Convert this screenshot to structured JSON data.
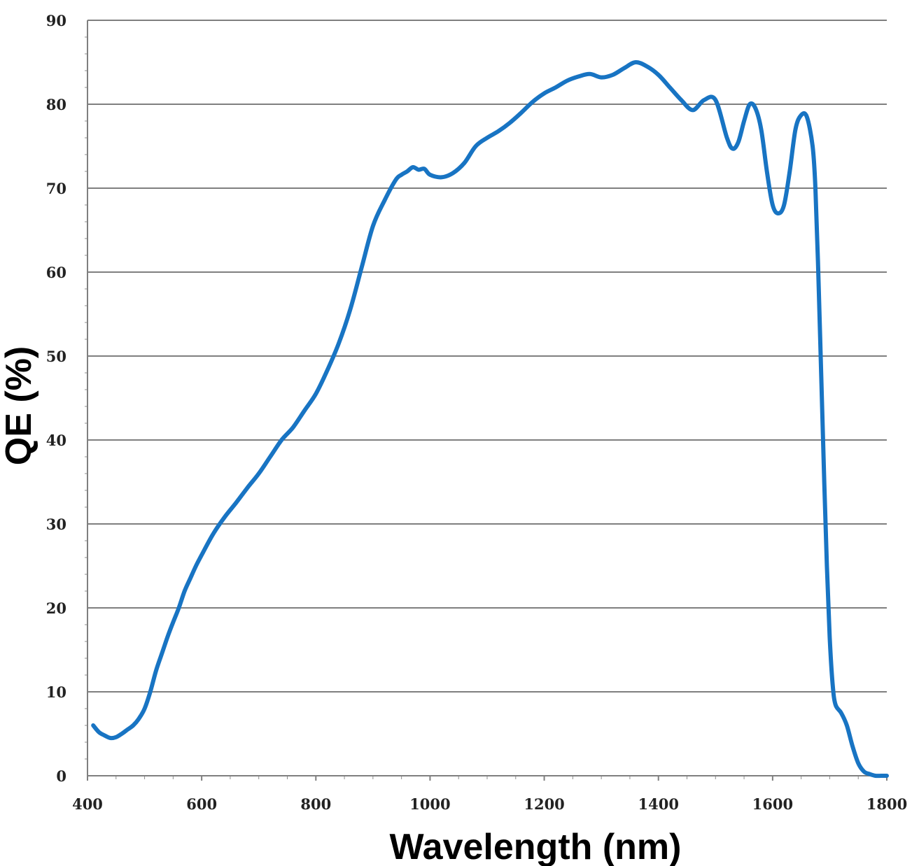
{
  "chart_data": {
    "type": "line",
    "title": "",
    "xlabel": "Wavelength (nm)",
    "ylabel": "QE (%)",
    "xlim": [
      400,
      1800
    ],
    "ylim": [
      0,
      90
    ],
    "x_ticks": [
      400,
      600,
      800,
      1000,
      1200,
      1400,
      1600,
      1800
    ],
    "y_ticks": [
      0,
      10,
      20,
      30,
      40,
      50,
      60,
      70,
      80,
      90
    ],
    "grid": "horizontal",
    "line_color": "#1874c3",
    "series": [
      {
        "x": [
          410,
          420,
          430,
          440,
          450,
          460,
          470,
          480,
          490,
          500,
          510,
          520,
          530,
          540,
          550,
          560,
          570,
          580,
          590,
          600,
          620,
          640,
          660,
          680,
          700,
          720,
          740,
          760,
          780,
          800,
          820,
          840,
          860,
          880,
          900,
          920,
          940,
          950,
          960,
          970,
          980,
          990,
          1000,
          1020,
          1040,
          1060,
          1080,
          1100,
          1120,
          1140,
          1160,
          1180,
          1200,
          1220,
          1240,
          1260,
          1280,
          1300,
          1320,
          1340,
          1360,
          1380,
          1400,
          1420,
          1440,
          1460,
          1480,
          1500,
          1520,
          1530,
          1540,
          1550,
          1560,
          1570,
          1580,
          1590,
          1600,
          1610,
          1620,
          1630,
          1640,
          1650,
          1660,
          1670,
          1675,
          1680,
          1685,
          1690,
          1695,
          1700,
          1705,
          1710,
          1720,
          1730,
          1740,
          1750,
          1760,
          1770,
          1780,
          1790,
          1800
        ],
        "y": [
          6.0,
          5.2,
          4.8,
          4.5,
          4.6,
          5.0,
          5.5,
          6.0,
          6.8,
          8.0,
          10.0,
          12.5,
          14.5,
          16.5,
          18.3,
          20.0,
          22.0,
          23.5,
          25.0,
          26.3,
          28.8,
          30.8,
          32.5,
          34.3,
          36.0,
          38.0,
          40.0,
          41.5,
          43.5,
          45.5,
          48.3,
          51.5,
          55.5,
          60.5,
          65.5,
          68.5,
          71.0,
          71.6,
          72.0,
          72.5,
          72.2,
          72.3,
          71.6,
          71.3,
          71.8,
          73.0,
          75.0,
          76.0,
          76.8,
          77.8,
          79.0,
          80.3,
          81.3,
          82.0,
          82.8,
          83.3,
          83.6,
          83.2,
          83.5,
          84.3,
          85.0,
          84.5,
          83.5,
          82.0,
          80.5,
          79.3,
          80.5,
          80.5,
          76.0,
          74.7,
          75.5,
          78.0,
          80.0,
          79.5,
          77.0,
          72.0,
          68.0,
          67.0,
          68.0,
          72.0,
          77.0,
          78.7,
          78.5,
          75.0,
          70.0,
          60.0,
          48.0,
          36.0,
          25.0,
          16.5,
          11.0,
          8.5,
          7.5,
          6.0,
          3.5,
          1.5,
          0.5,
          0.2,
          0.0,
          0.0,
          0.0
        ]
      }
    ]
  }
}
